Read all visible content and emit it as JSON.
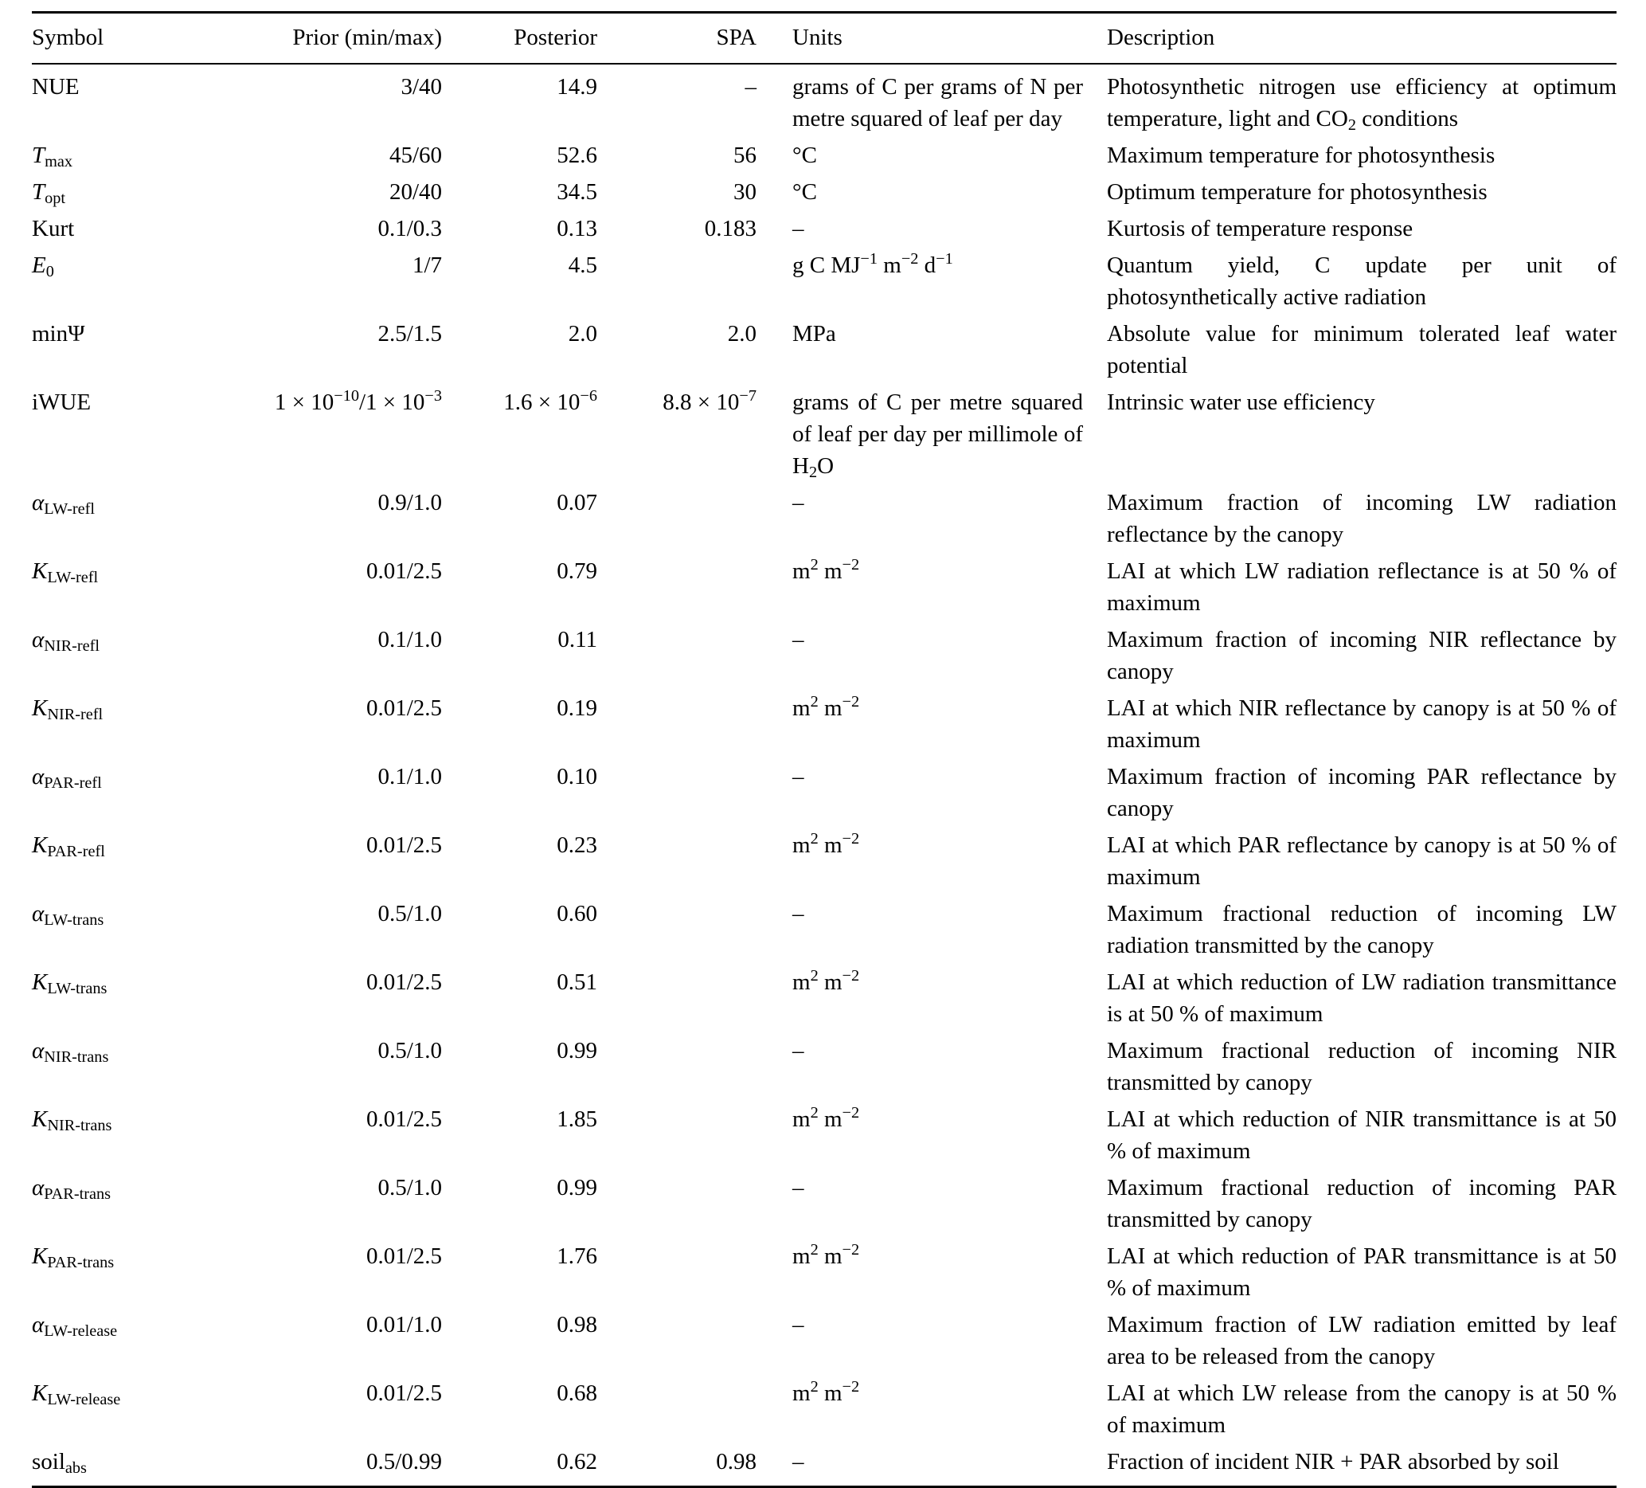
{
  "table": {
    "headers": {
      "symbol": "Symbol",
      "prior": "Prior (min/max)",
      "posterior": "Posterior",
      "spa": "SPA",
      "units": "Units",
      "description": "Description"
    },
    "rows": [
      {
        "symbol": "NUE",
        "prior": "3/40",
        "posterior": "14.9",
        "spa": "–",
        "units": "grams of C per grams of N per metre squared of leaf per day",
        "description": [
          "Photosynthetic nitrogen use efficiency at optimum temperature, light and CO",
          {
            "sub": "2"
          },
          " conditions"
        ]
      },
      {
        "symbol": [
          {
            "it": "T"
          },
          {
            "sub": "max"
          }
        ],
        "prior": "45/60",
        "posterior": "52.6",
        "spa": "56",
        "units": "°C",
        "description": "Maximum temperature for photosynthesis"
      },
      {
        "symbol": [
          {
            "it": "T"
          },
          {
            "sub": "opt"
          }
        ],
        "prior": "20/40",
        "posterior": "34.5",
        "spa": "30",
        "units": "°C",
        "description": "Optimum temperature for photosynthesis"
      },
      {
        "symbol": "Kurt",
        "prior": "0.1/0.3",
        "posterior": "0.13",
        "spa": "0.183",
        "units": "–",
        "description": "Kurtosis of temperature response"
      },
      {
        "symbol": [
          {
            "it": "E"
          },
          {
            "sub": "0"
          }
        ],
        "prior": "1/7",
        "posterior": "4.5",
        "spa": "",
        "units": [
          "g C MJ",
          {
            "sup": "−1"
          },
          " m",
          {
            "sup": "−2"
          },
          " d",
          {
            "sup": "−1"
          }
        ],
        "description": "Quantum yield, C update per unit of photosynthetically active radiation"
      },
      {
        "symbol": "minΨ",
        "prior": "2.5/1.5",
        "posterior": "2.0",
        "spa": "2.0",
        "units": "MPa",
        "description": "Absolute value for minimum tolerated leaf water potential"
      },
      {
        "symbol": "iWUE",
        "prior": [
          "1 × 10",
          {
            "sup": "−10"
          },
          "/1 × 10",
          {
            "sup": "−3"
          }
        ],
        "posterior": [
          "1.6 × 10",
          {
            "sup": "−6"
          }
        ],
        "spa": [
          "8.8 × 10",
          {
            "sup": "−7"
          }
        ],
        "units": [
          "grams of C per metre squared of leaf per day per millimole of H",
          {
            "sub": "2"
          },
          "O"
        ],
        "description": "Intrinsic water use efficiency"
      },
      {
        "symbol": [
          {
            "it": "α"
          },
          {
            "sub": "LW-refl"
          }
        ],
        "prior": "0.9/1.0",
        "posterior": "0.07",
        "spa": "",
        "units": "–",
        "description": "Maximum fraction of incoming LW radiation reflectance by the canopy"
      },
      {
        "symbol": [
          {
            "it": "K"
          },
          {
            "sub": "LW-refl"
          }
        ],
        "prior": "0.01/2.5",
        "posterior": "0.79",
        "spa": "",
        "units": [
          "m",
          {
            "sup": "2"
          },
          " m",
          {
            "sup": "−2"
          }
        ],
        "description": "LAI at which LW radiation reflectance is at 50 % of maximum"
      },
      {
        "symbol": [
          {
            "it": "α"
          },
          {
            "sub": "NIR-refl"
          }
        ],
        "prior": "0.1/1.0",
        "posterior": "0.11",
        "spa": "",
        "units": "–",
        "description": "Maximum fraction of incoming NIR reflectance by canopy"
      },
      {
        "symbol": [
          {
            "it": "K"
          },
          {
            "sub": "NIR-refl"
          }
        ],
        "prior": "0.01/2.5",
        "posterior": "0.19",
        "spa": "",
        "units": [
          "m",
          {
            "sup": "2"
          },
          " m",
          {
            "sup": "−2"
          }
        ],
        "description": "LAI at which NIR reflectance by canopy is at 50 % of maximum"
      },
      {
        "symbol": [
          {
            "it": "α"
          },
          {
            "sub": "PAR-refl"
          }
        ],
        "prior": "0.1/1.0",
        "posterior": "0.10",
        "spa": "",
        "units": "–",
        "description": "Maximum fraction of incoming PAR reflectance by canopy"
      },
      {
        "symbol": [
          {
            "it": "K"
          },
          {
            "sub": "PAR-refl"
          }
        ],
        "prior": "0.01/2.5",
        "posterior": "0.23",
        "spa": "",
        "units": [
          "m",
          {
            "sup": "2"
          },
          " m",
          {
            "sup": "−2"
          }
        ],
        "description": "LAI at which PAR reflectance by canopy is at 50 % of maximum"
      },
      {
        "symbol": [
          {
            "it": "α"
          },
          {
            "sub": "LW-trans"
          }
        ],
        "prior": "0.5/1.0",
        "posterior": "0.60",
        "spa": "",
        "units": "–",
        "description": "Maximum fractional reduction of incoming LW radiation transmitted by the canopy"
      },
      {
        "symbol": [
          {
            "it": "K"
          },
          {
            "sub": "LW-trans"
          }
        ],
        "prior": "0.01/2.5",
        "posterior": "0.51",
        "spa": "",
        "units": [
          "m",
          {
            "sup": "2"
          },
          " m",
          {
            "sup": "−2"
          }
        ],
        "description": "LAI at which reduction of LW radiation transmittance is at 50 % of maximum"
      },
      {
        "symbol": [
          {
            "it": "α"
          },
          {
            "sub": "NIR-trans"
          }
        ],
        "prior": "0.5/1.0",
        "posterior": "0.99",
        "spa": "",
        "units": "–",
        "description": "Maximum fractional reduction of incoming NIR transmitted by canopy"
      },
      {
        "symbol": [
          {
            "it": "K"
          },
          {
            "sub": "NIR-trans"
          }
        ],
        "prior": "0.01/2.5",
        "posterior": "1.85",
        "spa": "",
        "units": [
          "m",
          {
            "sup": "2"
          },
          " m",
          {
            "sup": "−2"
          }
        ],
        "description": "LAI at which reduction of NIR transmittance is at 50 % of maximum"
      },
      {
        "symbol": [
          {
            "it": "α"
          },
          {
            "sub": "PAR-trans"
          }
        ],
        "prior": "0.5/1.0",
        "posterior": "0.99",
        "spa": "",
        "units": "–",
        "description": "Maximum fractional reduction of incoming PAR transmitted by canopy"
      },
      {
        "symbol": [
          {
            "it": "K"
          },
          {
            "sub": "PAR-trans"
          }
        ],
        "prior": "0.01/2.5",
        "posterior": "1.76",
        "spa": "",
        "units": [
          "m",
          {
            "sup": "2"
          },
          " m",
          {
            "sup": "−2"
          }
        ],
        "description": "LAI at which reduction of PAR transmittance is at 50 % of maximum"
      },
      {
        "symbol": [
          {
            "it": "α"
          },
          {
            "sub": "LW-release"
          }
        ],
        "prior": "0.01/1.0",
        "posterior": "0.98",
        "spa": "",
        "units": "–",
        "description": "Maximum fraction of LW radiation emitted by leaf area to be released from the canopy"
      },
      {
        "symbol": [
          {
            "it": "K"
          },
          {
            "sub": "LW-release"
          }
        ],
        "prior": "0.01/2.5",
        "posterior": "0.68",
        "spa": "",
        "units": [
          "m",
          {
            "sup": "2"
          },
          " m",
          {
            "sup": "−2"
          }
        ],
        "description": "LAI at which LW release from the canopy is at 50 % of maximum"
      },
      {
        "symbol": [
          "soil",
          {
            "sub": "abs"
          }
        ],
        "prior": "0.5/0.99",
        "posterior": "0.62",
        "spa": "0.98",
        "units": "–",
        "description": "Fraction of incident NIR + PAR absorbed by soil"
      }
    ]
  }
}
